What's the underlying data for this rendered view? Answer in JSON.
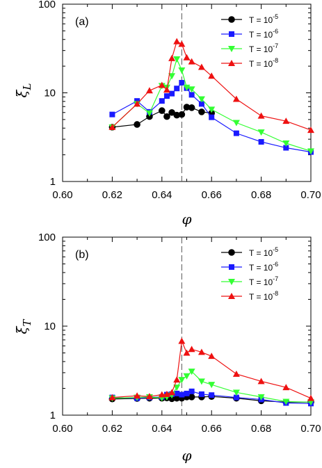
{
  "chart_data": [
    {
      "type": "line",
      "panel_label": "(a)",
      "xlabel": "φ",
      "ylabel_symbol": "ξ",
      "ylabel_sub": "L",
      "x_ticks": [
        "0.60",
        "0.62",
        "0.64",
        "0.66",
        "0.68",
        "0.70"
      ],
      "y_ticks": [
        "1",
        "10",
        "100"
      ],
      "xlim": [
        0.6,
        0.7
      ],
      "ylim": [
        1,
        100
      ],
      "y_scale": "log",
      "vline_x": 0.648,
      "legend_position": "top-right",
      "series": [
        {
          "label_base": "T = 10",
          "label_exp": "-5",
          "color": "#000000",
          "marker": "circle",
          "points": [
            [
              0.62,
              4.1
            ],
            [
              0.63,
              4.4
            ],
            [
              0.635,
              5.4
            ],
            [
              0.64,
              6.3
            ],
            [
              0.642,
              5.4
            ],
            [
              0.644,
              6.0
            ],
            [
              0.646,
              5.6
            ],
            [
              0.648,
              5.7
            ],
            [
              0.65,
              6.9
            ],
            [
              0.652,
              6.8
            ],
            [
              0.656,
              6.1
            ],
            [
              0.66,
              5.9
            ]
          ]
        },
        {
          "label_base": "T = 10",
          "label_exp": "-6",
          "color": "#1a1aff",
          "marker": "square",
          "points": [
            [
              0.62,
              5.7
            ],
            [
              0.63,
              8.1
            ],
            [
              0.635,
              6.1
            ],
            [
              0.64,
              8.1
            ],
            [
              0.642,
              9.2
            ],
            [
              0.644,
              9.8
            ],
            [
              0.646,
              11.2
            ],
            [
              0.648,
              13.0
            ],
            [
              0.65,
              11.3
            ],
            [
              0.652,
              9.5
            ],
            [
              0.656,
              7.5
            ],
            [
              0.66,
              5.3
            ],
            [
              0.67,
              3.5
            ],
            [
              0.68,
              2.8
            ],
            [
              0.69,
              2.4
            ],
            [
              0.7,
              2.15
            ]
          ]
        },
        {
          "label_base": "T = 10",
          "label_exp": "-7",
          "color": "#33ff33",
          "marker": "triangle-down",
          "points": [
            [
              0.62,
              4.1
            ],
            [
              0.63,
              7.5
            ],
            [
              0.635,
              5.9
            ],
            [
              0.64,
              12.0
            ],
            [
              0.642,
              11.5
            ],
            [
              0.644,
              15.5
            ],
            [
              0.646,
              24.0
            ],
            [
              0.648,
              18.0
            ],
            [
              0.65,
              11.5
            ],
            [
              0.652,
              11.0
            ],
            [
              0.656,
              8.5
            ],
            [
              0.66,
              6.5
            ],
            [
              0.67,
              4.6
            ],
            [
              0.68,
              3.6
            ],
            [
              0.69,
              2.7
            ],
            [
              0.7,
              2.2
            ]
          ]
        },
        {
          "label_base": "T = 10",
          "label_exp": "-8",
          "color": "#ee1111",
          "marker": "triangle-up",
          "points": [
            [
              0.62,
              4.1
            ],
            [
              0.63,
              7.5
            ],
            [
              0.635,
              10.6
            ],
            [
              0.64,
              12.2
            ],
            [
              0.642,
              10.8
            ],
            [
              0.644,
              24.5
            ],
            [
              0.646,
              38.0
            ],
            [
              0.648,
              35.5
            ],
            [
              0.65,
              25.0
            ],
            [
              0.652,
              22.5
            ],
            [
              0.656,
              19.5
            ],
            [
              0.66,
              15.5
            ],
            [
              0.67,
              8.5
            ],
            [
              0.68,
              5.5
            ],
            [
              0.69,
              4.8
            ],
            [
              0.7,
              3.8
            ]
          ]
        }
      ]
    },
    {
      "type": "line",
      "panel_label": "(b)",
      "xlabel": "φ",
      "ylabel_symbol": "ξ",
      "ylabel_sub": "T",
      "x_ticks": [
        "0.60",
        "0.62",
        "0.64",
        "0.66",
        "0.68",
        "0.70"
      ],
      "y_ticks": [
        "1",
        "10",
        "100"
      ],
      "xlim": [
        0.6,
        0.7
      ],
      "ylim": [
        1,
        100
      ],
      "y_scale": "log",
      "vline_x": 0.648,
      "legend_position": "top-right",
      "series": [
        {
          "label_base": "T = 10",
          "label_exp": "-5",
          "color": "#000000",
          "marker": "circle",
          "points": [
            [
              0.62,
              1.52
            ],
            [
              0.63,
              1.54
            ],
            [
              0.635,
              1.55
            ],
            [
              0.64,
              1.55
            ],
            [
              0.642,
              1.56
            ],
            [
              0.644,
              1.53
            ],
            [
              0.646,
              1.55
            ],
            [
              0.648,
              1.55
            ],
            [
              0.65,
              1.6
            ],
            [
              0.652,
              1.6
            ],
            [
              0.656,
              1.6
            ],
            [
              0.66,
              1.62
            ],
            [
              0.67,
              1.55
            ],
            [
              0.68,
              1.45
            ],
            [
              0.69,
              1.4
            ],
            [
              0.7,
              1.4
            ]
          ]
        },
        {
          "label_base": "T = 10",
          "label_exp": "-6",
          "color": "#1a1aff",
          "marker": "square",
          "points": [
            [
              0.62,
              1.58
            ],
            [
              0.63,
              1.55
            ],
            [
              0.635,
              1.58
            ],
            [
              0.64,
              1.6
            ],
            [
              0.642,
              1.7
            ],
            [
              0.644,
              1.72
            ],
            [
              0.646,
              1.75
            ],
            [
              0.648,
              1.7
            ],
            [
              0.65,
              1.75
            ],
            [
              0.652,
              1.85
            ],
            [
              0.656,
              1.72
            ],
            [
              0.66,
              1.68
            ],
            [
              0.67,
              1.58
            ],
            [
              0.68,
              1.5
            ],
            [
              0.69,
              1.37
            ],
            [
              0.7,
              1.35
            ]
          ]
        },
        {
          "label_base": "T = 10",
          "label_exp": "-7",
          "color": "#33ff33",
          "marker": "triangle-down",
          "points": [
            [
              0.62,
              1.55
            ],
            [
              0.63,
              1.58
            ],
            [
              0.635,
              1.6
            ],
            [
              0.64,
              1.56
            ],
            [
              0.642,
              1.6
            ],
            [
              0.644,
              1.68
            ],
            [
              0.646,
              2.05
            ],
            [
              0.648,
              2.5
            ],
            [
              0.65,
              2.75
            ],
            [
              0.652,
              3.1
            ],
            [
              0.656,
              2.4
            ],
            [
              0.66,
              2.2
            ],
            [
              0.67,
              1.8
            ],
            [
              0.68,
              1.6
            ],
            [
              0.69,
              1.42
            ],
            [
              0.7,
              1.4
            ]
          ]
        },
        {
          "label_base": "T = 10",
          "label_exp": "-8",
          "color": "#ee1111",
          "marker": "triangle-up",
          "points": [
            [
              0.62,
              1.58
            ],
            [
              0.63,
              1.65
            ],
            [
              0.635,
              1.62
            ],
            [
              0.64,
              1.7
            ],
            [
              0.642,
              1.72
            ],
            [
              0.644,
              1.8
            ],
            [
              0.646,
              2.5
            ],
            [
              0.648,
              6.8
            ],
            [
              0.65,
              5.0
            ],
            [
              0.652,
              5.5
            ],
            [
              0.656,
              5.1
            ],
            [
              0.66,
              4.6
            ],
            [
              0.67,
              2.9
            ],
            [
              0.68,
              2.4
            ],
            [
              0.69,
              2.05
            ],
            [
              0.7,
              1.55
            ]
          ]
        }
      ]
    }
  ]
}
